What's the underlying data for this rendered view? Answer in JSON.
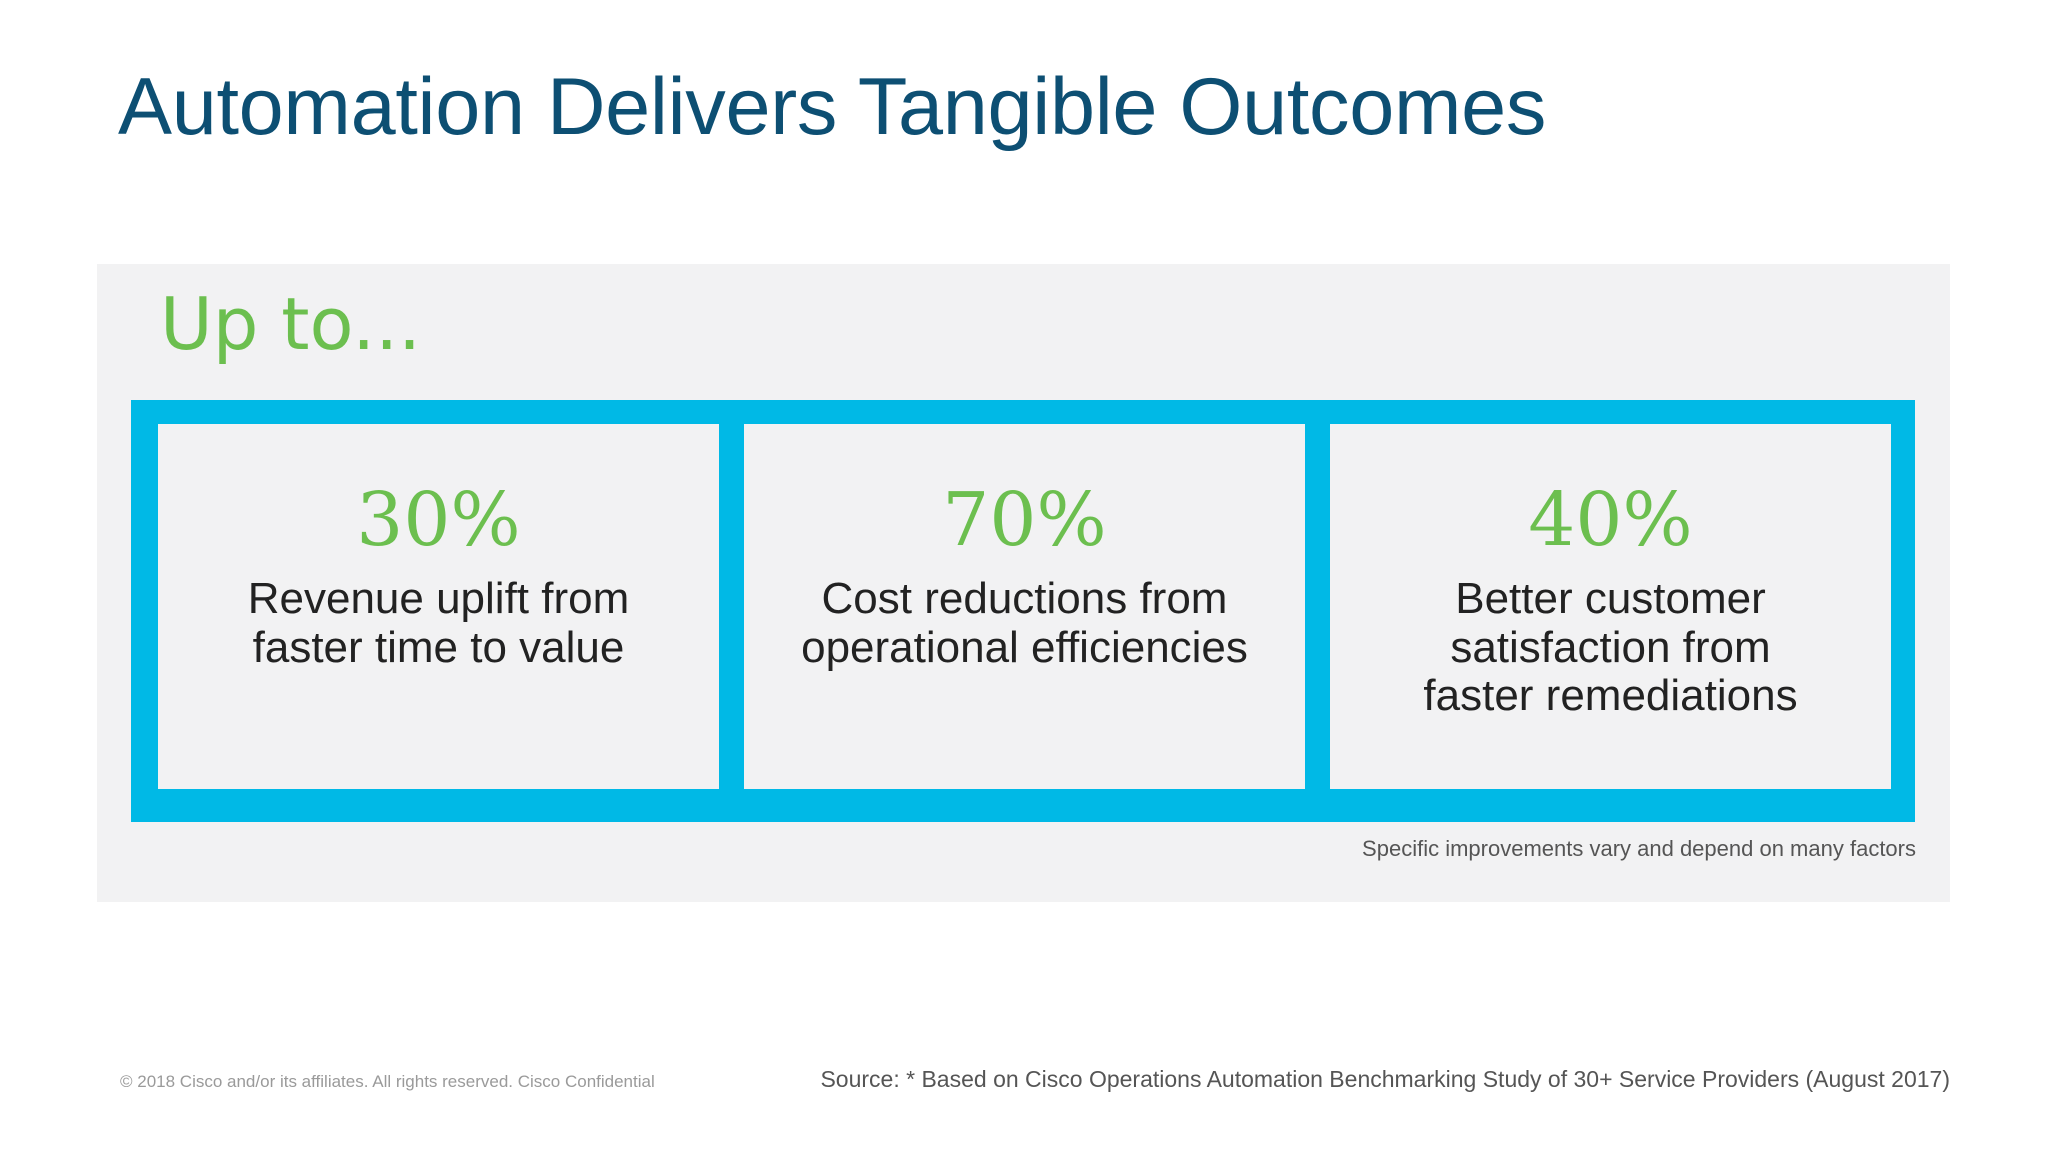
{
  "title": "Automation Delivers Tangible Outcomes",
  "subtitle": "Up to...",
  "cards": [
    {
      "stat": "30%",
      "lines": [
        "Revenue uplift from",
        "faster time to value"
      ]
    },
    {
      "stat": "70%",
      "lines": [
        "Cost reductions from",
        "operational efficiencies"
      ]
    },
    {
      "stat": "40%",
      "lines": [
        "Better customer",
        "satisfaction from",
        "faster remediations"
      ]
    }
  ],
  "footnote": "Specific improvements vary and depend on many factors",
  "copyright": "© 2018  Cisco and/or its affiliates. All rights reserved.   Cisco Confidential",
  "source": "Source: * Based on Cisco Operations Automation Benchmarking Study of 30+ Service Providers (August 2017)",
  "colors": {
    "title": "#0d4f73",
    "accent_green": "#6cbf4f",
    "frame_blue": "#00b9e6",
    "panel_gray": "#f2f2f3"
  }
}
